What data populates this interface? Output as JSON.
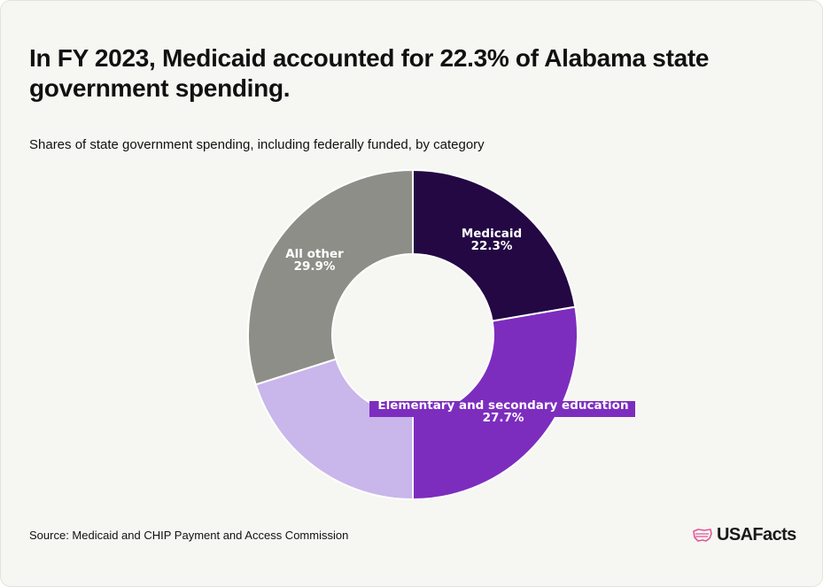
{
  "title": "In FY 2023, Medicaid accounted for 22.3% of Alabama state government spending.",
  "subtitle": "Shares of state government spending, including federally funded, by category",
  "source": "Source: Medicaid and CHIP Payment and Access Commission",
  "logo": {
    "text": "USAFacts",
    "icon": "us-map-flag-icon"
  },
  "colors": {
    "background": "#f6f6f2",
    "medicaid": "#230843",
    "elementary_secondary_education": "#7d2dbe",
    "unlabeled": "#c9b6ea",
    "all_other": "#8e8e88",
    "label_text": "#ffffff",
    "logo_accent": "#e0559a"
  },
  "chart_data": {
    "type": "pie",
    "donut": true,
    "title": "In FY 2023, Medicaid accounted for 22.3% of Alabama state government spending.",
    "subtitle": "Shares of state government spending, including federally funded, by category",
    "categories": [
      "Medicaid",
      "Elementary and secondary education",
      "",
      "All other"
    ],
    "values": [
      22.3,
      27.7,
      20.1,
      29.9
    ],
    "labels": [
      "Medicaid\n22.3%",
      "Elementary and secondary education\n27.7%",
      "",
      "All other\n29.9%"
    ],
    "unit": "%",
    "legend": "none"
  }
}
